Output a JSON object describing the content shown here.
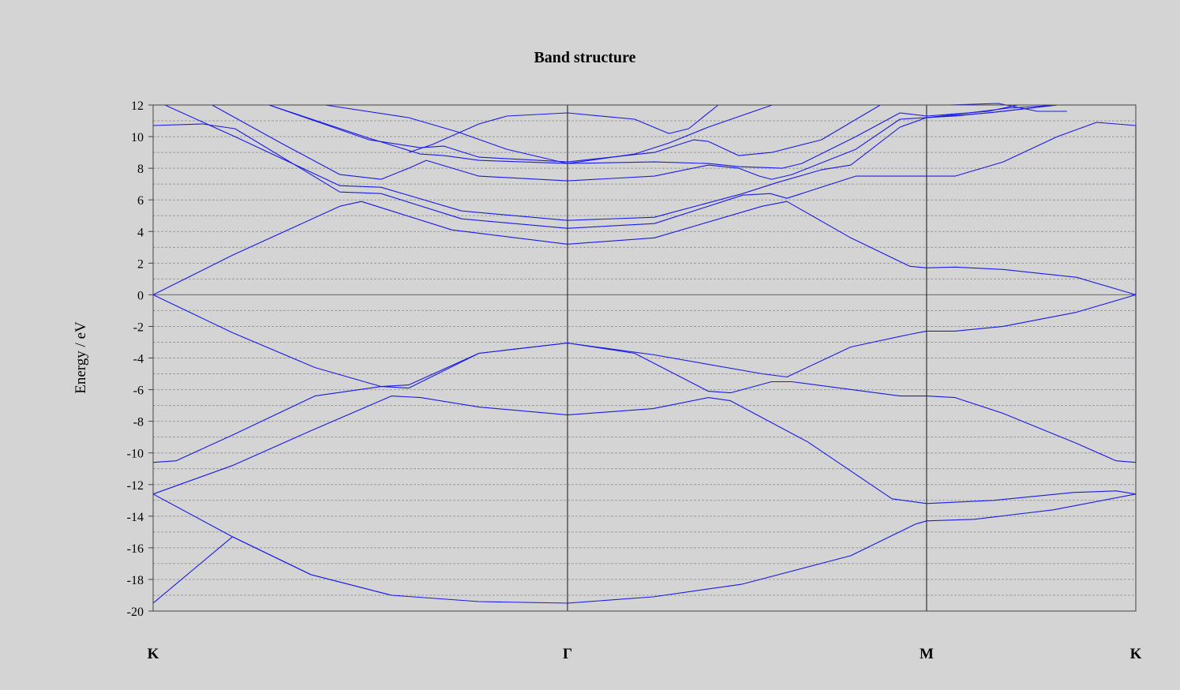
{
  "chart_data": {
    "type": "line",
    "title": "Band structure",
    "xlabel": "",
    "ylabel": "Energy / eV",
    "ylim": [
      -20,
      12
    ],
    "yticks": [
      12,
      10,
      8,
      6,
      4,
      2,
      0,
      -2,
      -4,
      -6,
      -8,
      -10,
      -12,
      -14,
      -16,
      -18,
      -20
    ],
    "xlim": [
      0,
      1
    ],
    "grid": "dashed horizontal every 1 eV",
    "k_points": [
      {
        "label": "K",
        "x": 0.0
      },
      {
        "label": "Γ",
        "x": 0.4217
      },
      {
        "label": "M",
        "x": 0.7871
      },
      {
        "label": "K",
        "x": 1.0
      }
    ],
    "line_color": "#1a1ae6",
    "series": [
      {
        "values": [
          [
            0,
            -19.5
          ],
          [
            0.0807,
            -15.3
          ],
          [
            0.1606,
            -17.7
          ],
          [
            0.2426,
            -19.0
          ],
          [
            0.3316,
            -19.4
          ],
          [
            0.4217,
            -19.5
          ],
          [
            0.5088,
            -19.1
          ],
          [
            0.5996,
            -18.3
          ],
          [
            0.7099,
            -16.5
          ],
          [
            0.776,
            -14.5
          ],
          [
            0.7871,
            -14.3
          ],
          [
            0.8354,
            -14.2
          ],
          [
            0.916,
            -13.6
          ],
          [
            1.0,
            -12.6
          ]
        ]
      },
      {
        "values": [
          [
            0,
            -12.6
          ],
          [
            0.0807,
            -15.3
          ],
          [
            0.1606,
            -17.7
          ],
          [
            0.2426,
            -19.0
          ]
        ]
      },
      {
        "values": [
          [
            0,
            -12.6
          ],
          [
            0.0807,
            -10.8
          ],
          [
            0.1606,
            -8.6
          ],
          [
            0.2426,
            -6.4
          ],
          [
            0.2723,
            -6.5
          ],
          [
            0.3316,
            -7.1
          ],
          [
            0.4217,
            -7.6
          ],
          [
            0.5088,
            -7.2
          ],
          [
            0.565,
            -6.5
          ],
          [
            0.5875,
            -6.7
          ],
          [
            0.6661,
            -9.3
          ],
          [
            0.7519,
            -12.9
          ],
          [
            0.7871,
            -13.2
          ],
          [
            0.8554,
            -13.0
          ],
          [
            0.9364,
            -12.5
          ],
          [
            0.98,
            -12.4
          ],
          [
            1.0,
            -12.6
          ]
        ]
      },
      {
        "values": [
          [
            0,
            -10.6
          ],
          [
            0.0233,
            -10.5
          ],
          [
            0.0833,
            -8.8
          ],
          [
            0.1646,
            -6.4
          ],
          [
            0.2321,
            -5.8
          ],
          [
            0.26,
            -5.9
          ],
          [
            0.3316,
            -3.7
          ],
          [
            0.4217,
            -3.05
          ],
          [
            0.49,
            -3.7
          ],
          [
            0.565,
            -6.1
          ],
          [
            0.5875,
            -6.2
          ],
          [
            0.6294,
            -5.5
          ],
          [
            0.65,
            -5.5
          ],
          [
            0.76,
            -6.4
          ],
          [
            0.7871,
            -6.4
          ],
          [
            0.816,
            -6.5
          ],
          [
            0.865,
            -7.5
          ],
          [
            0.94,
            -9.4
          ],
          [
            0.98,
            -10.5
          ],
          [
            1.0,
            -10.6
          ]
        ]
      },
      {
        "values": [
          [
            0,
            0
          ],
          [
            0.0807,
            -2.4
          ],
          [
            0.1646,
            -4.6
          ],
          [
            0.2321,
            -5.8
          ],
          [
            0.26,
            -5.7
          ],
          [
            0.3316,
            -3.7
          ],
          [
            0.4217,
            -3.05
          ],
          [
            0.51,
            -3.8
          ],
          [
            0.62,
            -5.0
          ],
          [
            0.645,
            -5.2
          ],
          [
            0.71,
            -3.3
          ],
          [
            0.77,
            -2.5
          ],
          [
            0.7871,
            -2.3
          ],
          [
            0.816,
            -2.3
          ],
          [
            0.865,
            -2.0
          ],
          [
            0.94,
            -1.1
          ],
          [
            1.0,
            0
          ]
        ]
      },
      {
        "values": [
          [
            0,
            0
          ],
          [
            0.0807,
            2.5
          ],
          [
            0.19,
            5.6
          ],
          [
            0.212,
            5.9
          ],
          [
            0.304,
            4.1
          ],
          [
            0.4217,
            3.2
          ],
          [
            0.51,
            3.6
          ],
          [
            0.62,
            5.6
          ],
          [
            0.645,
            5.9
          ],
          [
            0.71,
            3.6
          ],
          [
            0.77,
            1.8
          ],
          [
            0.7871,
            1.7
          ],
          [
            0.816,
            1.75
          ],
          [
            0.865,
            1.6
          ],
          [
            0.94,
            1.1
          ],
          [
            1.0,
            0
          ]
        ]
      },
      {
        "values": [
          [
            0,
            10.7
          ],
          [
            0.05,
            10.8
          ],
          [
            0.0833,
            10.5
          ],
          [
            0.19,
            6.5
          ],
          [
            0.232,
            6.4
          ],
          [
            0.314,
            4.8
          ],
          [
            0.4217,
            4.2
          ],
          [
            0.51,
            4.5
          ],
          [
            0.6,
            6.3
          ],
          [
            0.628,
            6.4
          ],
          [
            0.645,
            6.1
          ],
          [
            0.715,
            7.5
          ],
          [
            0.76,
            7.5
          ],
          [
            0.7871,
            7.5
          ],
          [
            0.816,
            7.5
          ],
          [
            0.865,
            8.4
          ],
          [
            0.92,
            10.0
          ],
          [
            0.96,
            10.9
          ],
          [
            1.0,
            10.7
          ]
        ]
      },
      {
        "values": [
          [
            0.012,
            12
          ],
          [
            0.0833,
            10.0
          ],
          [
            0.19,
            6.9
          ],
          [
            0.232,
            6.8
          ],
          [
            0.314,
            5.3
          ],
          [
            0.4217,
            4.7
          ],
          [
            0.51,
            4.9
          ],
          [
            0.6,
            6.4
          ],
          [
            0.635,
            7.1
          ],
          [
            0.68,
            7.9
          ],
          [
            0.71,
            8.2
          ],
          [
            0.76,
            10.6
          ],
          [
            0.7871,
            11.2
          ],
          [
            0.816,
            11.3
          ],
          [
            0.865,
            11.6
          ],
          [
            0.92,
            12
          ]
        ]
      },
      {
        "values": [
          [
            0.06,
            12
          ],
          [
            0.13,
            9.6
          ],
          [
            0.19,
            7.6
          ],
          [
            0.232,
            7.3
          ],
          [
            0.26,
            8.0
          ],
          [
            0.278,
            8.5
          ],
          [
            0.3316,
            7.5
          ],
          [
            0.4217,
            7.2
          ],
          [
            0.51,
            7.5
          ],
          [
            0.565,
            8.2
          ],
          [
            0.596,
            8.0
          ],
          [
            0.617,
            7.5
          ],
          [
            0.6294,
            7.3
          ],
          [
            0.65,
            7.6
          ],
          [
            0.715,
            9.2
          ],
          [
            0.76,
            11.1
          ],
          [
            0.7871,
            11.2
          ],
          [
            0.85,
            11.5
          ],
          [
            0.92,
            12
          ]
        ]
      },
      {
        "values": [
          [
            0.118,
            12
          ],
          [
            0.22,
            9.9
          ],
          [
            0.272,
            8.9
          ],
          [
            0.296,
            8.8
          ],
          [
            0.3316,
            8.5
          ],
          [
            0.4217,
            8.3
          ],
          [
            0.51,
            8.4
          ],
          [
            0.565,
            8.3
          ],
          [
            0.596,
            8.1
          ],
          [
            0.64,
            8.0
          ],
          [
            0.66,
            8.3
          ],
          [
            0.715,
            10.0
          ],
          [
            0.76,
            11.5
          ],
          [
            0.7871,
            11.3
          ],
          [
            0.85,
            11.6
          ],
          [
            0.88,
            12
          ]
        ]
      },
      {
        "values": [
          [
            0.118,
            12
          ],
          [
            0.22,
            9.8
          ],
          [
            0.272,
            9.3
          ],
          [
            0.296,
            9.4
          ],
          [
            0.3316,
            8.7
          ],
          [
            0.4217,
            8.4
          ],
          [
            0.51,
            9.0
          ],
          [
            0.55,
            9.8
          ],
          [
            0.565,
            9.7
          ],
          [
            0.596,
            8.8
          ],
          [
            0.6294,
            9.0
          ],
          [
            0.68,
            9.8
          ],
          [
            0.74,
            12
          ]
        ]
      },
      {
        "values": [
          [
            0.175,
            12
          ],
          [
            0.26,
            11.2
          ],
          [
            0.31,
            10.3
          ],
          [
            0.36,
            9.2
          ],
          [
            0.4217,
            8.3
          ],
          [
            0.49,
            8.9
          ],
          [
            0.525,
            9.6
          ],
          [
            0.565,
            10.6
          ],
          [
            0.63,
            12
          ]
        ]
      },
      {
        "values": [
          [
            0.26,
            9.0
          ],
          [
            0.284,
            9.5
          ],
          [
            0.3316,
            10.8
          ],
          [
            0.36,
            11.3
          ],
          [
            0.4217,
            11.5
          ],
          [
            0.49,
            11.1
          ],
          [
            0.525,
            10.2
          ],
          [
            0.545,
            10.5
          ],
          [
            0.575,
            12
          ]
        ]
      },
      {
        "values": [
          [
            0.81,
            12
          ],
          [
            0.86,
            12.1
          ],
          [
            0.9,
            11.6
          ],
          [
            0.93,
            11.6
          ]
        ]
      },
      {
        "values": [
          [
            0.7871,
            11.2
          ],
          [
            0.83,
            11.5
          ],
          [
            0.87,
            11.8
          ],
          [
            0.92,
            12
          ]
        ]
      }
    ]
  }
}
